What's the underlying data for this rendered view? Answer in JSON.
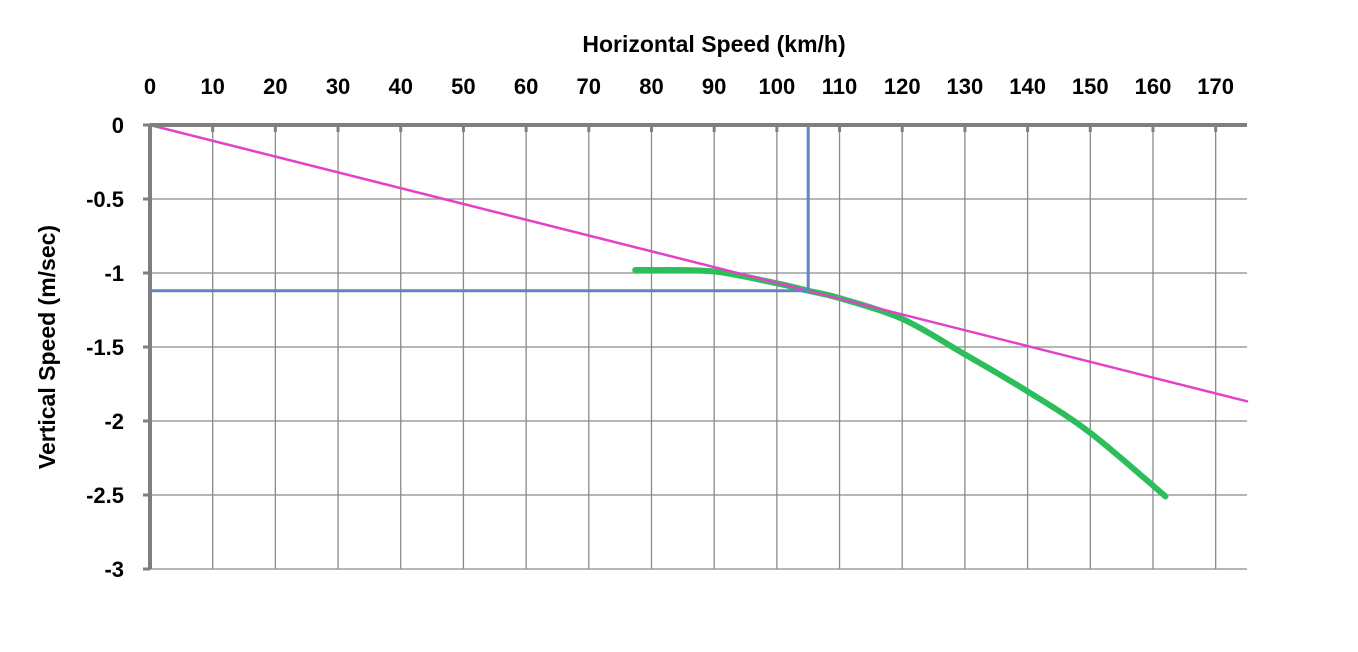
{
  "chart_data": {
    "type": "line",
    "xlabel": "Horizontal Speed  (km/h)",
    "ylabel": "Vertical Speed  (m/sec)",
    "xlim": [
      0,
      175
    ],
    "ylim": [
      -3,
      0
    ],
    "x_ticks": [
      0,
      10,
      20,
      30,
      40,
      50,
      60,
      70,
      80,
      90,
      100,
      110,
      120,
      130,
      140,
      150,
      160,
      170
    ],
    "y_ticks": [
      0,
      -0.5,
      -1,
      -1.5,
      -2,
      -2.5,
      -3
    ],
    "y_tick_labels": [
      "0",
      "-0.5",
      "-1",
      "-1.5",
      "-2",
      "-2.5",
      "-3"
    ],
    "x_axis_position": "top",
    "grid": true,
    "legend": "none",
    "series": [
      {
        "color": "#2dbe5c",
        "x": [
          77.4,
          80,
          90,
          100,
          105,
          110,
          120,
          130,
          140,
          150,
          162
        ],
        "y": [
          -0.98,
          -0.98,
          -0.99,
          -1.07,
          -1.12,
          -1.17,
          -1.31,
          -1.55,
          -1.8,
          -2.08,
          -2.51
        ]
      },
      {
        "color": "#e441c9",
        "x": [
          0,
          175
        ],
        "y": [
          0,
          -1.867
        ]
      },
      {
        "color": "#5b87c8",
        "x": [
          105,
          105
        ],
        "y": [
          0,
          -1.12
        ]
      },
      {
        "color": "#5b87c8",
        "x": [
          0,
          105
        ],
        "y": [
          -1.12,
          -1.12
        ]
      }
    ]
  }
}
